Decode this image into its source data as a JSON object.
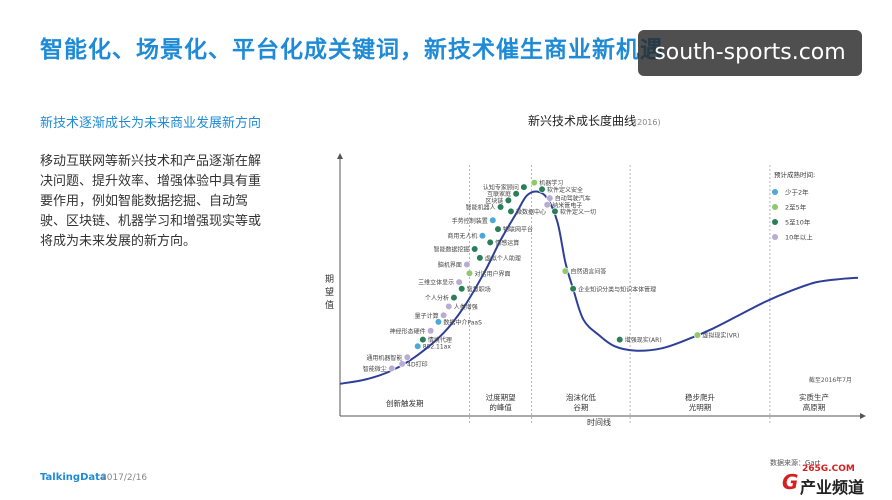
{
  "slide": {
    "title": "智能化、场景化、平台化成关键词，新技术催生商业新机遇",
    "subtitle": "新技术逐渐成长为未来商业发展新方向",
    "paragraph_lines": [
      "移动互联网等新兴技术和产品逐渐在解",
      "决问题、提升效率、增强体验中具有重",
      "要作用，例如智能数据挖掘、自动驾",
      "驶、区块链、机器学习和增强现实等或",
      "将成为未来发展的新方向。"
    ],
    "watermark": "south-sports.com",
    "footer_brand": "TalkingData",
    "footer_date": "2017/2/16",
    "data_source": "数据来源：Gart",
    "logo": {
      "domain": "265G.COM",
      "mark": "G",
      "text": "产业频道"
    }
  },
  "chart_data": {
    "type": "scatter",
    "title": "新兴技术成长度曲线",
    "title_year": "(2016)",
    "ylabel": "期望值",
    "xlabel": "时间线",
    "x_range": [
      0,
      100
    ],
    "y_range": [
      0,
      100
    ],
    "phases": [
      "创新触发期",
      "过度期望的峰值",
      "泡沫化低谷期",
      "稳步爬升光明期",
      "实质生产高原期"
    ],
    "phase_breaks": [
      25,
      37,
      56,
      83
    ],
    "curve": [
      [
        0,
        1
      ],
      [
        5,
        3
      ],
      [
        10,
        7
      ],
      [
        15,
        14
      ],
      [
        20,
        24
      ],
      [
        24,
        36
      ],
      [
        28,
        52
      ],
      [
        31,
        66
      ],
      [
        34,
        78
      ],
      [
        36,
        86
      ],
      [
        38,
        88
      ],
      [
        40,
        85
      ],
      [
        42,
        74
      ],
      [
        43.5,
        56
      ],
      [
        45,
        44
      ],
      [
        47,
        30
      ],
      [
        50,
        23
      ],
      [
        53,
        18
      ],
      [
        57,
        16
      ],
      [
        62,
        17
      ],
      [
        67,
        21
      ],
      [
        72,
        26
      ],
      [
        77,
        32
      ],
      [
        82,
        38
      ],
      [
        87,
        43
      ],
      [
        92,
        47
      ],
      [
        97,
        48.5
      ],
      [
        100,
        49
      ]
    ],
    "legend": {
      "title": "预计成熟时间:",
      "position": "top-right",
      "items": [
        {
          "label": "少于2年",
          "color": "#4aa9d8"
        },
        {
          "label": "2至5年",
          "color": "#8fc96a"
        },
        {
          "label": "5至10年",
          "color": "#2a7e5a"
        },
        {
          "label": "10年以上",
          "color": "#b9acd3"
        }
      ]
    },
    "note": "截至2016年7月",
    "points": [
      {
        "label": "4D打印",
        "x": 12,
        "y": 10,
        "cat": 3,
        "side": "right"
      },
      {
        "label": "智能微尘",
        "x": 10,
        "y": 8,
        "cat": 3,
        "side": "left"
      },
      {
        "label": "通用机器智能",
        "x": 13,
        "y": 13,
        "cat": 3,
        "side": "left"
      },
      {
        "label": "802.11ax",
        "x": 15,
        "y": 18,
        "cat": 0,
        "side": "right"
      },
      {
        "label": "情境代理",
        "x": 16,
        "y": 21,
        "cat": 2,
        "side": "right"
      },
      {
        "label": "神经形态硬件",
        "x": 17.5,
        "y": 25,
        "cat": 3,
        "side": "left"
      },
      {
        "label": "数据中介PaaS",
        "x": 19,
        "y": 29,
        "cat": 0,
        "side": "right"
      },
      {
        "label": "量子计算",
        "x": 20,
        "y": 32,
        "cat": 3,
        "side": "left"
      },
      {
        "label": "人类增强",
        "x": 21,
        "y": 36,
        "cat": 3,
        "side": "right"
      },
      {
        "label": "个人分析",
        "x": 22,
        "y": 40,
        "cat": 2,
        "side": "left"
      },
      {
        "label": "智慧职场",
        "x": 23.5,
        "y": 44,
        "cat": 2,
        "side": "right"
      },
      {
        "label": "三维立体显示",
        "x": 23,
        "y": 47,
        "cat": 3,
        "side": "left"
      },
      {
        "label": "对话用户界面",
        "x": 25,
        "y": 51,
        "cat": 1,
        "side": "right"
      },
      {
        "label": "脑机界面",
        "x": 24.5,
        "y": 55,
        "cat": 3,
        "side": "left"
      },
      {
        "label": "虚拟个人助理",
        "x": 27,
        "y": 58,
        "cat": 2,
        "side": "right"
      },
      {
        "label": "智能数据挖掘",
        "x": 26,
        "y": 62,
        "cat": 2,
        "side": "left"
      },
      {
        "label": "情感运算",
        "x": 29,
        "y": 65,
        "cat": 2,
        "side": "right"
      },
      {
        "label": "商用无人机",
        "x": 27.5,
        "y": 68,
        "cat": 0,
        "side": "left"
      },
      {
        "label": "物联网平台",
        "x": 30.5,
        "y": 71,
        "cat": 2,
        "side": "right"
      },
      {
        "label": "手势控制装置",
        "x": 29.5,
        "y": 75,
        "cat": 0,
        "side": "left"
      },
      {
        "label": "微数据中心",
        "x": 33,
        "y": 79,
        "cat": 2,
        "side": "right"
      },
      {
        "label": "智能机器人",
        "x": 31,
        "y": 81,
        "cat": 2,
        "side": "left"
      },
      {
        "label": "区块链",
        "x": 32.5,
        "y": 84,
        "cat": 2,
        "side": "left"
      },
      {
        "label": "互联家庭",
        "x": 34,
        "y": 87,
        "cat": 2,
        "side": "left"
      },
      {
        "label": "认知专家顾问",
        "x": 35.5,
        "y": 90,
        "cat": 2,
        "side": "left"
      },
      {
        "label": "机器学习",
        "x": 37.5,
        "y": 92,
        "cat": 1,
        "side": "right"
      },
      {
        "label": "软件定义安全",
        "x": 39,
        "y": 89,
        "cat": 2,
        "side": "right"
      },
      {
        "label": "自动驾驶汽车",
        "x": 40.5,
        "y": 85,
        "cat": 3,
        "side": "right"
      },
      {
        "label": "纳米管电子",
        "x": 40,
        "y": 82,
        "cat": 3,
        "side": "right"
      },
      {
        "label": "软件定义一切",
        "x": 41.5,
        "y": 79,
        "cat": 2,
        "side": "right"
      },
      {
        "label": "自然语言问答",
        "x": 43.5,
        "y": 52,
        "cat": 1,
        "side": "right"
      },
      {
        "label": "企业知识分类与知识本体管理",
        "x": 45,
        "y": 44,
        "cat": 2,
        "side": "right"
      },
      {
        "label": "增强现实(AR)",
        "x": 54,
        "y": 21,
        "cat": 2,
        "side": "right"
      },
      {
        "label": "虚拟现实(VR)",
        "x": 69,
        "y": 23,
        "cat": 1,
        "side": "right"
      }
    ]
  }
}
